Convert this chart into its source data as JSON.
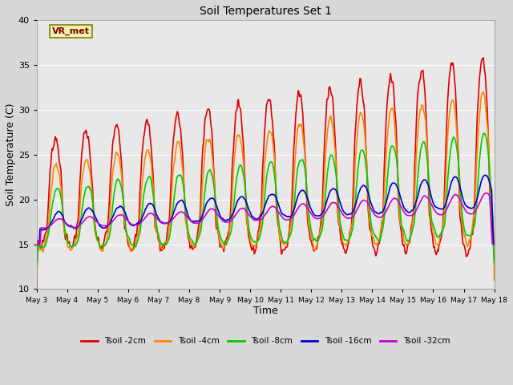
{
  "title": "Soil Temperatures Set 1",
  "xlabel": "Time",
  "ylabel": "Soil Temperature (C)",
  "ylim": [
    10,
    40
  ],
  "xlim": [
    0,
    15
  ],
  "fig_bg_color": "#d8d8d8",
  "plot_bg_color": "#d8d8d8",
  "inner_bg_color": "#e8e8e8",
  "annotation_text": "VR_met",
  "annotation_bg": "#f0f0b0",
  "annotation_border": "#808000",
  "annotation_text_color": "#800000",
  "series": {
    "Tsoil -2cm": {
      "color": "#dd0000",
      "lw": 1.2
    },
    "Tsoil -4cm": {
      "color": "#ff8800",
      "lw": 1.2
    },
    "Tsoil -8cm": {
      "color": "#00cc00",
      "lw": 1.2
    },
    "Tsoil -16cm": {
      "color": "#0000cc",
      "lw": 1.2
    },
    "Tsoil -32cm": {
      "color": "#cc00cc",
      "lw": 1.2
    }
  },
  "xtick_labels": [
    "May 3",
    "May 4",
    "May 5",
    "May 6",
    "May 7",
    "May 8",
    "May 9",
    "May 10",
    "May 11",
    "May 12",
    "May 13",
    "May 14",
    "May 15",
    "May 16",
    "May 17",
    "May 18"
  ],
  "xtick_positions": [
    0,
    1,
    2,
    3,
    4,
    5,
    6,
    7,
    8,
    9,
    10,
    11,
    12,
    13,
    14,
    15
  ]
}
